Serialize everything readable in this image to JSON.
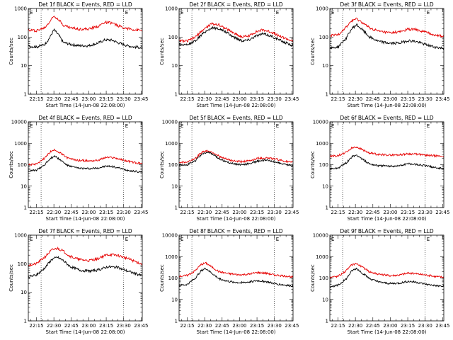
{
  "figure": {
    "background": "#ffffff"
  },
  "colors": {
    "events": "#000000",
    "lld": "#e60000"
  },
  "chart_data": [
    {
      "type": "line",
      "title": "Det 1f BLACK = Events, RED = LLD",
      "ylabel": "Counts/sec",
      "xlabel": "Start Time (14-Jun-08 22:08:00)",
      "x_ticks": [
        "22:15",
        "22:30",
        "22:45",
        "23:00",
        "23:15",
        "23:30",
        "23:45"
      ],
      "y_ticks": [
        "1",
        "10",
        "100",
        "1000"
      ],
      "ylim": [
        1,
        1000
      ],
      "yscale": "log",
      "marker": "E",
      "series": [
        {
          "name": "Events",
          "color": "#000000",
          "x": [
            "22:08",
            "22:15",
            "22:22",
            "22:26",
            "22:30",
            "22:34",
            "22:38",
            "22:45",
            "22:52",
            "23:00",
            "23:08",
            "23:14",
            "23:20",
            "23:26",
            "23:33",
            "23:39",
            "23:46"
          ],
          "values": [
            48,
            45,
            55,
            90,
            180,
            120,
            65,
            55,
            50,
            50,
            62,
            80,
            78,
            62,
            50,
            45,
            42
          ]
        },
        {
          "name": "LLD",
          "color": "#e60000",
          "x": [
            "22:08",
            "22:15",
            "22:22",
            "22:26",
            "22:30",
            "22:34",
            "22:38",
            "22:45",
            "22:52",
            "23:00",
            "23:08",
            "23:14",
            "23:20",
            "23:26",
            "23:33",
            "23:39",
            "23:46"
          ],
          "values": [
            175,
            170,
            210,
            330,
            550,
            430,
            260,
            210,
            190,
            190,
            240,
            330,
            310,
            240,
            200,
            180,
            170
          ]
        }
      ]
    },
    {
      "type": "line",
      "title": "Det 2f BLACK = Events, RED = LLD",
      "ylabel": "Counts/sec",
      "xlabel": "Start Time (14-Jun-08 22:08:00)",
      "x_ticks": [
        "22:15",
        "22:30",
        "22:45",
        "23:00",
        "23:15",
        "23:30",
        "23:45"
      ],
      "y_ticks": [
        "1",
        "10",
        "100",
        "1000"
      ],
      "ylim": [
        1,
        1000
      ],
      "yscale": "log",
      "marker": "E",
      "series": [
        {
          "name": "Events",
          "color": "#000000",
          "x": [
            "22:08",
            "22:15",
            "22:22",
            "22:30",
            "22:36",
            "22:42",
            "22:48",
            "22:55",
            "23:02",
            "23:08",
            "23:14",
            "23:20",
            "23:27",
            "23:34",
            "23:41",
            "23:46"
          ],
          "values": [
            55,
            52,
            75,
            150,
            210,
            200,
            150,
            100,
            75,
            80,
            110,
            130,
            110,
            80,
            60,
            50
          ]
        },
        {
          "name": "LLD",
          "color": "#e60000",
          "x": [
            "22:08",
            "22:15",
            "22:22",
            "22:30",
            "22:36",
            "22:42",
            "22:48",
            "22:55",
            "23:02",
            "23:08",
            "23:14",
            "23:20",
            "23:27",
            "23:34",
            "23:41",
            "23:46"
          ],
          "values": [
            75,
            72,
            100,
            200,
            290,
            270,
            200,
            140,
            100,
            110,
            150,
            180,
            150,
            110,
            85,
            70
          ]
        }
      ]
    },
    {
      "type": "line",
      "title": "Det 3f BLACK = Events, RED = LLD",
      "ylabel": "Counts/sec",
      "xlabel": "Start Time (14-Jun-08 22:08:00)",
      "x_ticks": [
        "22:15",
        "22:30",
        "22:45",
        "23:00",
        "23:15",
        "23:30",
        "23:45"
      ],
      "y_ticks": [
        "1",
        "10",
        "100",
        "1000"
      ],
      "ylim": [
        1,
        1000
      ],
      "yscale": "log",
      "marker": "E",
      "series": [
        {
          "name": "Events",
          "color": "#000000",
          "x": [
            "22:08",
            "22:15",
            "22:22",
            "22:27",
            "22:31",
            "22:36",
            "22:42",
            "22:50",
            "23:00",
            "23:08",
            "23:15",
            "23:22",
            "23:30",
            "23:38",
            "23:46"
          ],
          "values": [
            40,
            45,
            90,
            200,
            270,
            180,
            100,
            70,
            60,
            62,
            75,
            70,
            55,
            45,
            40
          ]
        },
        {
          "name": "LLD",
          "color": "#e60000",
          "x": [
            "22:08",
            "22:15",
            "22:22",
            "22:27",
            "22:31",
            "22:36",
            "22:42",
            "22:50",
            "23:00",
            "23:08",
            "23:15",
            "23:22",
            "23:30",
            "23:38",
            "23:46"
          ],
          "values": [
            110,
            120,
            220,
            380,
            430,
            320,
            210,
            160,
            140,
            150,
            190,
            180,
            150,
            120,
            105
          ]
        }
      ]
    },
    {
      "type": "line",
      "title": "Det 4f BLACK = Events, RED = LLD",
      "ylabel": "Counts/sec",
      "xlabel": "Start Time (14-Jun-08 22:08:00)",
      "x_ticks": [
        "22:15",
        "22:30",
        "22:45",
        "23:00",
        "23:15",
        "23:30",
        "23:45"
      ],
      "y_ticks": [
        "1",
        "10",
        "100",
        "1000",
        "10000"
      ],
      "ylim": [
        1,
        10000
      ],
      "yscale": "log",
      "marker": "E",
      "series": [
        {
          "name": "Events",
          "color": "#000000",
          "x": [
            "22:08",
            "22:15",
            "22:22",
            "22:27",
            "22:31",
            "22:36",
            "22:42",
            "22:50",
            "23:00",
            "23:08",
            "23:15",
            "23:22",
            "23:30",
            "23:38",
            "23:46"
          ],
          "values": [
            50,
            55,
            100,
            200,
            250,
            160,
            90,
            70,
            65,
            70,
            85,
            80,
            60,
            50,
            45
          ]
        },
        {
          "name": "LLD",
          "color": "#e60000",
          "x": [
            "22:08",
            "22:15",
            "22:22",
            "22:27",
            "22:31",
            "22:36",
            "22:42",
            "22:50",
            "23:00",
            "23:08",
            "23:15",
            "23:22",
            "23:30",
            "23:38",
            "23:46"
          ],
          "values": [
            100,
            110,
            200,
            400,
            500,
            330,
            200,
            160,
            150,
            160,
            220,
            210,
            160,
            130,
            110
          ]
        }
      ]
    },
    {
      "type": "line",
      "title": "Det 5f BLACK = Events, RED = LLD",
      "ylabel": "Counts/sec",
      "xlabel": "Start Time (14-Jun-08 22:08:00)",
      "x_ticks": [
        "22:15",
        "22:30",
        "22:45",
        "23:00",
        "23:15",
        "23:30",
        "23:45"
      ],
      "y_ticks": [
        "1",
        "10",
        "100",
        "1000",
        "10000"
      ],
      "ylim": [
        1,
        10000
      ],
      "yscale": "log",
      "marker": "E",
      "series": [
        {
          "name": "Events",
          "color": "#000000",
          "x": [
            "22:08",
            "22:15",
            "22:22",
            "22:28",
            "22:33",
            "22:38",
            "22:44",
            "22:52",
            "23:00",
            "23:08",
            "23:16",
            "23:24",
            "23:32",
            "23:40",
            "23:46"
          ],
          "values": [
            100,
            100,
            150,
            330,
            380,
            280,
            170,
            120,
            100,
            110,
            150,
            160,
            130,
            100,
            90
          ]
        },
        {
          "name": "LLD",
          "color": "#e60000",
          "x": [
            "22:08",
            "22:15",
            "22:22",
            "22:28",
            "22:33",
            "22:38",
            "22:44",
            "22:52",
            "23:00",
            "23:08",
            "23:16",
            "23:24",
            "23:32",
            "23:40",
            "23:46"
          ],
          "values": [
            130,
            130,
            200,
            400,
            450,
            350,
            220,
            160,
            140,
            150,
            200,
            210,
            180,
            140,
            125
          ]
        }
      ]
    },
    {
      "type": "line",
      "title": "Det 6f BLACK = Events, RED = LLD",
      "ylabel": "Counts/sec",
      "xlabel": "Start Time (14-Jun-08 22:08:00)",
      "x_ticks": [
        "22:15",
        "22:30",
        "22:45",
        "23:00",
        "23:15",
        "23:30",
        "23:45"
      ],
      "y_ticks": [
        "1",
        "10",
        "100",
        "1000",
        "10000"
      ],
      "ylim": [
        1,
        10000
      ],
      "yscale": "log",
      "marker": "E",
      "series": [
        {
          "name": "Events",
          "color": "#000000",
          "x": [
            "22:08",
            "22:15",
            "22:22",
            "22:27",
            "22:31",
            "22:36",
            "22:42",
            "22:50",
            "23:00",
            "23:08",
            "23:15",
            "23:22",
            "23:30",
            "23:38",
            "23:46"
          ],
          "values": [
            65,
            70,
            120,
            230,
            280,
            180,
            110,
            90,
            85,
            90,
            110,
            105,
            90,
            75,
            65
          ]
        },
        {
          "name": "LLD",
          "color": "#e60000",
          "x": [
            "22:08",
            "22:15",
            "22:22",
            "22:27",
            "22:31",
            "22:36",
            "22:42",
            "22:50",
            "23:00",
            "23:08",
            "23:15",
            "23:22",
            "23:30",
            "23:38",
            "23:46"
          ],
          "values": [
            250,
            260,
            380,
            600,
            680,
            500,
            350,
            300,
            280,
            290,
            320,
            310,
            280,
            260,
            245
          ]
        }
      ]
    },
    {
      "type": "line",
      "title": "Det 7f BLACK = Events, RED = LLD",
      "ylabel": "Counts/sec",
      "xlabel": "Start Time (14-Jun-08 22:08:00)",
      "x_ticks": [
        "22:15",
        "22:30",
        "22:45",
        "23:00",
        "23:15",
        "23:30",
        "23:45"
      ],
      "y_ticks": [
        "1",
        "10",
        "100",
        "1000"
      ],
      "ylim": [
        1,
        1000
      ],
      "yscale": "log",
      "marker": "E",
      "series": [
        {
          "name": "Events",
          "color": "#000000",
          "x": [
            "22:08",
            "22:15",
            "22:22",
            "22:28",
            "22:33",
            "22:38",
            "22:44",
            "22:52",
            "23:00",
            "23:08",
            "23:16",
            "23:24",
            "23:32",
            "23:40",
            "23:46"
          ],
          "values": [
            35,
            40,
            70,
            140,
            170,
            130,
            80,
            60,
            55,
            60,
            78,
            75,
            58,
            45,
            38
          ]
        },
        {
          "name": "LLD",
          "color": "#e60000",
          "x": [
            "22:08",
            "22:15",
            "22:22",
            "22:28",
            "22:33",
            "22:38",
            "22:44",
            "22:52",
            "23:00",
            "23:08",
            "23:16",
            "23:24",
            "23:32",
            "23:40",
            "23:46"
          ],
          "values": [
            90,
            100,
            170,
            300,
            350,
            280,
            180,
            140,
            130,
            150,
            210,
            200,
            160,
            120,
            95
          ]
        }
      ]
    },
    {
      "type": "line",
      "title": "Det 8f BLACK = Events, RED = LLD",
      "ylabel": "Counts/sec",
      "xlabel": "Start Time (14-Jun-08 22:08:00)",
      "x_ticks": [
        "22:15",
        "22:30",
        "22:45",
        "23:00",
        "23:15",
        "23:30",
        "23:45"
      ],
      "y_ticks": [
        "1",
        "10",
        "100",
        "1000",
        "10000"
      ],
      "ylim": [
        1,
        10000
      ],
      "yscale": "log",
      "marker": "E",
      "series": [
        {
          "name": "Events",
          "color": "#000000",
          "x": [
            "22:08",
            "22:15",
            "22:22",
            "22:27",
            "22:31",
            "22:36",
            "22:42",
            "22:50",
            "23:00",
            "23:08",
            "23:15",
            "23:22",
            "23:30",
            "23:38",
            "23:46"
          ],
          "values": [
            45,
            50,
            100,
            220,
            280,
            170,
            95,
            70,
            60,
            65,
            75,
            70,
            55,
            48,
            42
          ]
        },
        {
          "name": "LLD",
          "color": "#e60000",
          "x": [
            "22:08",
            "22:15",
            "22:22",
            "22:27",
            "22:31",
            "22:36",
            "22:42",
            "22:50",
            "23:00",
            "23:08",
            "23:15",
            "23:22",
            "23:30",
            "23:38",
            "23:46"
          ],
          "values": [
            120,
            130,
            220,
            430,
            500,
            330,
            200,
            160,
            140,
            150,
            180,
            170,
            140,
            125,
            115
          ]
        }
      ]
    },
    {
      "type": "line",
      "title": "Det 9f BLACK = Events, RED = LLD",
      "ylabel": "Counts/sec",
      "xlabel": "Start Time (14-Jun-08 22:08:00)",
      "x_ticks": [
        "22:15",
        "22:30",
        "22:45",
        "23:00",
        "23:15",
        "23:30",
        "23:45"
      ],
      "y_ticks": [
        "1",
        "10",
        "100",
        "1000",
        "10000"
      ],
      "ylim": [
        1,
        10000
      ],
      "yscale": "log",
      "marker": "E",
      "series": [
        {
          "name": "Events",
          "color": "#000000",
          "x": [
            "22:08",
            "22:15",
            "22:22",
            "22:27",
            "22:31",
            "22:36",
            "22:42",
            "22:50",
            "23:00",
            "23:08",
            "23:15",
            "23:22",
            "23:30",
            "23:38",
            "23:46"
          ],
          "values": [
            40,
            45,
            90,
            220,
            280,
            170,
            95,
            65,
            55,
            58,
            70,
            65,
            52,
            45,
            40
          ]
        },
        {
          "name": "LLD",
          "color": "#e60000",
          "x": [
            "22:08",
            "22:15",
            "22:22",
            "22:27",
            "22:31",
            "22:36",
            "22:42",
            "22:50",
            "23:00",
            "23:08",
            "23:15",
            "23:22",
            "23:30",
            "23:38",
            "23:46"
          ],
          "values": [
            110,
            120,
            220,
            420,
            480,
            320,
            200,
            150,
            130,
            140,
            170,
            160,
            140,
            120,
            110
          ]
        }
      ]
    }
  ]
}
